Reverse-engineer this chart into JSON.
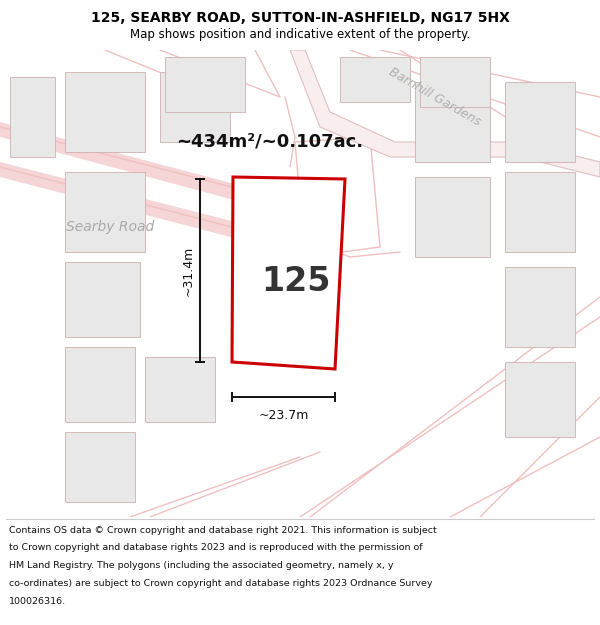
{
  "title_line1": "125, SEARBY ROAD, SUTTON-IN-ASHFIELD, NG17 5HX",
  "title_line2": "Map shows position and indicative extent of the property.",
  "area_text": "~434m²/~0.107ac.",
  "label_125": "125",
  "dim_width": "~23.7m",
  "dim_height": "~31.4m",
  "road_label": "Searby Road",
  "street_label": "Barnhill Gardens",
  "footer_lines": [
    "Contains OS data © Crown copyright and database right 2021. This information is subject",
    "to Crown copyright and database rights 2023 and is reproduced with the permission of",
    "HM Land Registry. The polygons (including the associated geometry, namely x, y",
    "co-ordinates) are subject to Crown copyright and database rights 2023 Ordnance Survey",
    "100026316."
  ],
  "bg_color": "#ffffff",
  "map_bg": "#ffffff",
  "plot_fill": "#ffffff",
  "plot_edge": "#cc0000",
  "road_line_color": "#f0c0c0",
  "building_fill": "#e8e8e8",
  "building_edge": "#d0b0b0",
  "title_color": "#000000",
  "subtitle_color": "#000000",
  "road_label_color": "#aaaaaa",
  "barnhill_color": "#bbbbbb",
  "dim_color": "#111111",
  "area_color": "#111111",
  "label_color": "#333333"
}
